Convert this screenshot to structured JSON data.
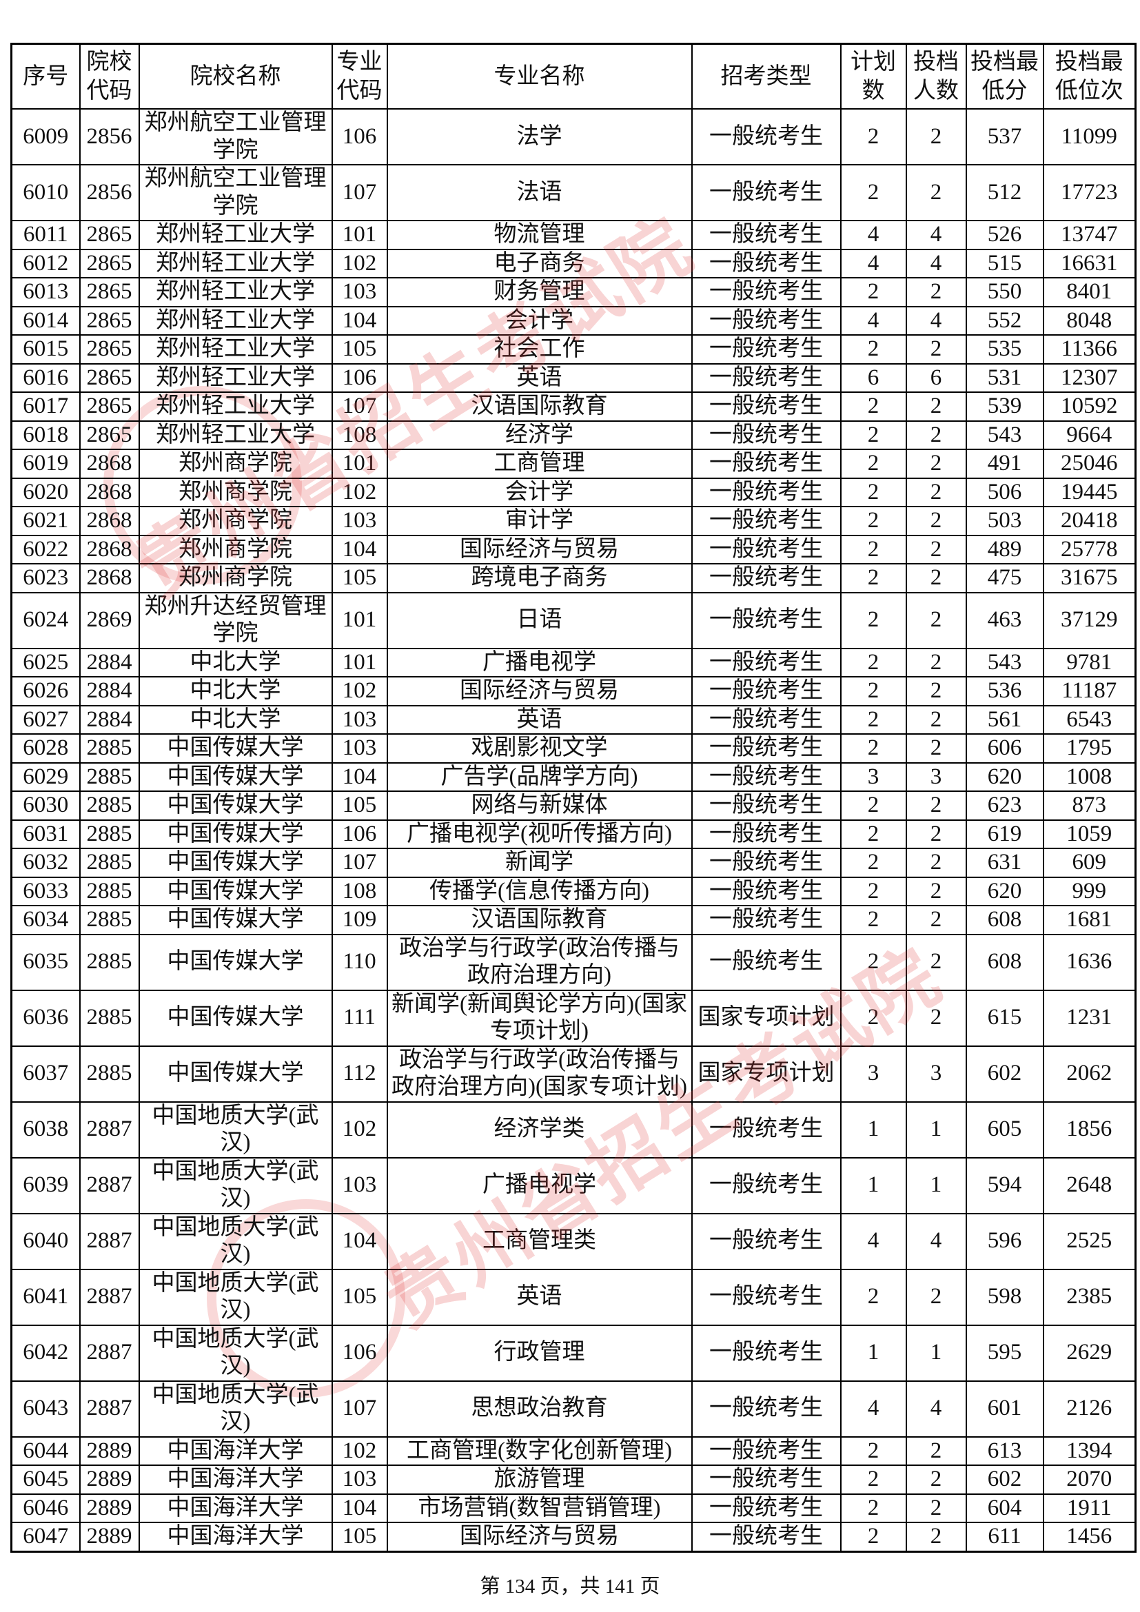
{
  "headers": [
    "序号",
    "院校代码",
    "院校名称",
    "专业代码",
    "专业名称",
    "招考类型",
    "计划数",
    "投档人数",
    "投档最低分",
    "投档最低位次"
  ],
  "rows": [
    [
      "6009",
      "2856",
      "郑州航空工业管理学院",
      "106",
      "法学",
      "一般统考生",
      "2",
      "2",
      "537",
      "11099"
    ],
    [
      "6010",
      "2856",
      "郑州航空工业管理学院",
      "107",
      "法语",
      "一般统考生",
      "2",
      "2",
      "512",
      "17723"
    ],
    [
      "6011",
      "2865",
      "郑州轻工业大学",
      "101",
      "物流管理",
      "一般统考生",
      "4",
      "4",
      "526",
      "13747"
    ],
    [
      "6012",
      "2865",
      "郑州轻工业大学",
      "102",
      "电子商务",
      "一般统考生",
      "4",
      "4",
      "515",
      "16631"
    ],
    [
      "6013",
      "2865",
      "郑州轻工业大学",
      "103",
      "财务管理",
      "一般统考生",
      "2",
      "2",
      "550",
      "8401"
    ],
    [
      "6014",
      "2865",
      "郑州轻工业大学",
      "104",
      "会计学",
      "一般统考生",
      "4",
      "4",
      "552",
      "8048"
    ],
    [
      "6015",
      "2865",
      "郑州轻工业大学",
      "105",
      "社会工作",
      "一般统考生",
      "2",
      "2",
      "535",
      "11366"
    ],
    [
      "6016",
      "2865",
      "郑州轻工业大学",
      "106",
      "英语",
      "一般统考生",
      "6",
      "6",
      "531",
      "12307"
    ],
    [
      "6017",
      "2865",
      "郑州轻工业大学",
      "107",
      "汉语国际教育",
      "一般统考生",
      "2",
      "2",
      "539",
      "10592"
    ],
    [
      "6018",
      "2865",
      "郑州轻工业大学",
      "108",
      "经济学",
      "一般统考生",
      "2",
      "2",
      "543",
      "9664"
    ],
    [
      "6019",
      "2868",
      "郑州商学院",
      "101",
      "工商管理",
      "一般统考生",
      "2",
      "2",
      "491",
      "25046"
    ],
    [
      "6020",
      "2868",
      "郑州商学院",
      "102",
      "会计学",
      "一般统考生",
      "2",
      "2",
      "506",
      "19445"
    ],
    [
      "6021",
      "2868",
      "郑州商学院",
      "103",
      "审计学",
      "一般统考生",
      "2",
      "2",
      "503",
      "20418"
    ],
    [
      "6022",
      "2868",
      "郑州商学院",
      "104",
      "国际经济与贸易",
      "一般统考生",
      "2",
      "2",
      "489",
      "25778"
    ],
    [
      "6023",
      "2868",
      "郑州商学院",
      "105",
      "跨境电子商务",
      "一般统考生",
      "2",
      "2",
      "475",
      "31675"
    ],
    [
      "6024",
      "2869",
      "郑州升达经贸管理学院",
      "101",
      "日语",
      "一般统考生",
      "2",
      "2",
      "463",
      "37129"
    ],
    [
      "6025",
      "2884",
      "中北大学",
      "101",
      "广播电视学",
      "一般统考生",
      "2",
      "2",
      "543",
      "9781"
    ],
    [
      "6026",
      "2884",
      "中北大学",
      "102",
      "国际经济与贸易",
      "一般统考生",
      "2",
      "2",
      "536",
      "11187"
    ],
    [
      "6027",
      "2884",
      "中北大学",
      "103",
      "英语",
      "一般统考生",
      "2",
      "2",
      "561",
      "6543"
    ],
    [
      "6028",
      "2885",
      "中国传媒大学",
      "103",
      "戏剧影视文学",
      "一般统考生",
      "2",
      "2",
      "606",
      "1795"
    ],
    [
      "6029",
      "2885",
      "中国传媒大学",
      "104",
      "广告学(品牌学方向)",
      "一般统考生",
      "3",
      "3",
      "620",
      "1008"
    ],
    [
      "6030",
      "2885",
      "中国传媒大学",
      "105",
      "网络与新媒体",
      "一般统考生",
      "2",
      "2",
      "623",
      "873"
    ],
    [
      "6031",
      "2885",
      "中国传媒大学",
      "106",
      "广播电视学(视听传播方向)",
      "一般统考生",
      "2",
      "2",
      "619",
      "1059"
    ],
    [
      "6032",
      "2885",
      "中国传媒大学",
      "107",
      "新闻学",
      "一般统考生",
      "2",
      "2",
      "631",
      "609"
    ],
    [
      "6033",
      "2885",
      "中国传媒大学",
      "108",
      "传播学(信息传播方向)",
      "一般统考生",
      "2",
      "2",
      "620",
      "999"
    ],
    [
      "6034",
      "2885",
      "中国传媒大学",
      "109",
      "汉语国际教育",
      "一般统考生",
      "2",
      "2",
      "608",
      "1681"
    ],
    [
      "6035",
      "2885",
      "中国传媒大学",
      "110",
      "政治学与行政学(政治传播与政府治理方向)",
      "一般统考生",
      "2",
      "2",
      "608",
      "1636"
    ],
    [
      "6036",
      "2885",
      "中国传媒大学",
      "111",
      "新闻学(新闻舆论学方向)(国家专项计划)",
      "国家专项计划",
      "2",
      "2",
      "615",
      "1231"
    ],
    [
      "6037",
      "2885",
      "中国传媒大学",
      "112",
      "政治学与行政学(政治传播与政府治理方向)(国家专项计划)",
      "国家专项计划",
      "3",
      "3",
      "602",
      "2062"
    ],
    [
      "6038",
      "2887",
      "中国地质大学(武汉)",
      "102",
      "经济学类",
      "一般统考生",
      "1",
      "1",
      "605",
      "1856"
    ],
    [
      "6039",
      "2887",
      "中国地质大学(武汉)",
      "103",
      "广播电视学",
      "一般统考生",
      "1",
      "1",
      "594",
      "2648"
    ],
    [
      "6040",
      "2887",
      "中国地质大学(武汉)",
      "104",
      "工商管理类",
      "一般统考生",
      "4",
      "4",
      "596",
      "2525"
    ],
    [
      "6041",
      "2887",
      "中国地质大学(武汉)",
      "105",
      "英语",
      "一般统考生",
      "2",
      "2",
      "598",
      "2385"
    ],
    [
      "6042",
      "2887",
      "中国地质大学(武汉)",
      "106",
      "行政管理",
      "一般统考生",
      "1",
      "1",
      "595",
      "2629"
    ],
    [
      "6043",
      "2887",
      "中国地质大学(武汉)",
      "107",
      "思想政治教育",
      "一般统考生",
      "4",
      "4",
      "601",
      "2126"
    ],
    [
      "6044",
      "2889",
      "中国海洋大学",
      "102",
      "工商管理(数字化创新管理)",
      "一般统考生",
      "2",
      "2",
      "613",
      "1394"
    ],
    [
      "6045",
      "2889",
      "中国海洋大学",
      "103",
      "旅游管理",
      "一般统考生",
      "2",
      "2",
      "602",
      "2070"
    ],
    [
      "6046",
      "2889",
      "中国海洋大学",
      "104",
      "市场营销(数智营销管理)",
      "一般统考生",
      "2",
      "2",
      "604",
      "1911"
    ],
    [
      "6047",
      "2889",
      "中国海洋大学",
      "105",
      "国际经济与贸易",
      "一般统考生",
      "2",
      "2",
      "611",
      "1456"
    ]
  ],
  "footer": "第 134 页，共 141 页",
  "watermark": {
    "text": "贵州省招生考试院",
    "seal_text": "贵州",
    "color": "#e13c3c"
  }
}
